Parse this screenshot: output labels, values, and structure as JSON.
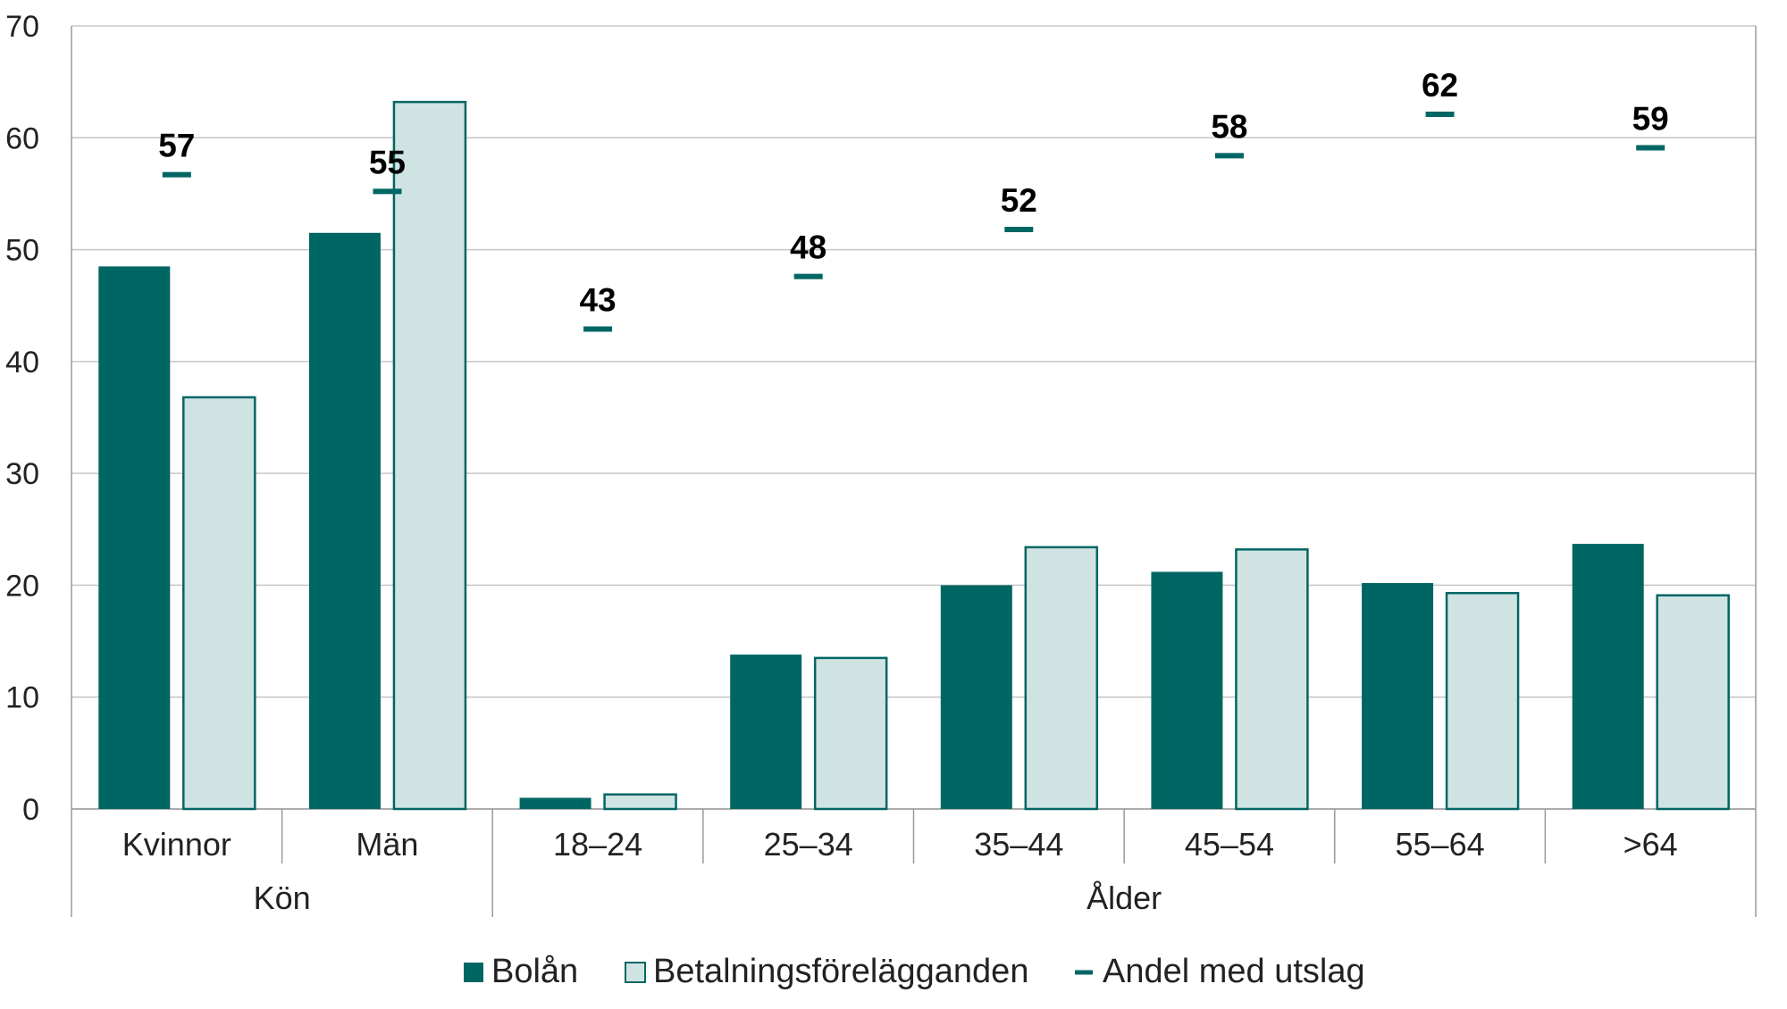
{
  "colors": {
    "bolan": "#006664",
    "betalning_fill": "#cfe3e3",
    "betalning_stroke": "#006664",
    "marker": "#006664",
    "grid": "#c6c6c6",
    "axis": "#9a9a9a"
  },
  "chart_data": {
    "type": "bar",
    "ylim": [
      0,
      70
    ],
    "yticks": [
      0,
      10,
      20,
      30,
      40,
      50,
      60,
      70
    ],
    "grid": true,
    "legend_position": "bottom-center",
    "categories": [
      "Kvinnor",
      "Män",
      "18–24",
      "25–34",
      "35–44",
      "45–54",
      "55–64",
      ">64"
    ],
    "groups": [
      {
        "label": "Kön",
        "from": 0,
        "to": 1
      },
      {
        "label": "Ålder",
        "from": 2,
        "to": 7
      }
    ],
    "series": [
      {
        "name": "Bolån",
        "kind": "bar",
        "values": [
          48.5,
          51.5,
          1.0,
          13.8,
          20.0,
          21.2,
          20.2,
          23.7
        ]
      },
      {
        "name": "Betalningsförelägganden",
        "kind": "bar",
        "values": [
          36.8,
          63.2,
          1.3,
          13.5,
          23.4,
          23.2,
          19.3,
          19.1
        ]
      },
      {
        "name": "Andel med utslag",
        "kind": "marker",
        "values": [
          56.7,
          55.2,
          42.9,
          47.6,
          51.8,
          58.4,
          62.1,
          59.1
        ],
        "labels": [
          "57",
          "55",
          "43",
          "48",
          "52",
          "58",
          "62",
          "59"
        ]
      }
    ]
  }
}
